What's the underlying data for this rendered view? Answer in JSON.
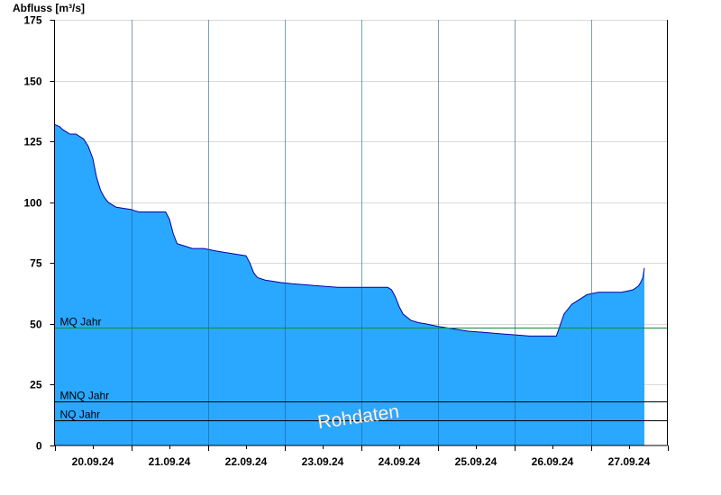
{
  "chart_data": {
    "type": "area",
    "ylabel": "Abfluss [m³/s]",
    "ylim": [
      0,
      175
    ],
    "yticks": [
      0,
      25,
      50,
      75,
      100,
      125,
      150,
      175
    ],
    "ytick_labels": [
      "0",
      "25",
      "50",
      "75",
      "100",
      "125",
      "150",
      "175"
    ],
    "x_day_labels": [
      "20.09.24",
      "21.09.24",
      "22.09.24",
      "23.09.24",
      "24.09.24",
      "25.09.24",
      "26.09.24",
      "27.09.24"
    ],
    "x_days_span": 8,
    "grid": true,
    "colors": {
      "fill": "#2aa8ff",
      "line": "#0000aa",
      "mq": "#138a3c",
      "ref": "#000000",
      "grid": "#d9d9d9"
    },
    "reference_lines": [
      {
        "label": "MQ Jahr",
        "value": 48.5
      },
      {
        "label": "MNQ Jahr",
        "value": 18
      },
      {
        "label": "NQ Jahr",
        "value": 10.5
      }
    ],
    "watermark": "Rohdaten",
    "series": [
      {
        "x_days": [
          0,
          0.07,
          0.1,
          0.15,
          0.2,
          0.28,
          0.38,
          0.44,
          0.5,
          0.55,
          0.6,
          0.65,
          0.7,
          0.75,
          0.8,
          0.9,
          1.0,
          1.05,
          1.1,
          1.25,
          1.35,
          1.45,
          1.5,
          1.55,
          1.6,
          1.7,
          1.8,
          1.95,
          2.1,
          2.3,
          2.5,
          2.55,
          2.6,
          2.65,
          2.75,
          2.95,
          3.1,
          3.3,
          3.5,
          3.7,
          3.9,
          4.05,
          4.2,
          4.35,
          4.4,
          4.45,
          4.5,
          4.55,
          4.65,
          4.75,
          4.85,
          5.0,
          5.2,
          5.4,
          5.6,
          5.8,
          6.0,
          6.2,
          6.35,
          6.55,
          6.65,
          6.75,
          6.85,
          6.95,
          7.1,
          7.3,
          7.4,
          7.48,
          7.55,
          7.62,
          7.65,
          7.68,
          7.7
        ],
        "values": [
          132,
          131,
          130,
          129,
          128,
          128,
          126,
          123,
          118,
          110,
          105,
          102,
          100,
          99,
          98,
          97.5,
          97,
          96.5,
          96,
          96,
          96,
          96,
          93,
          87,
          83,
          82,
          81,
          81,
          80,
          79,
          78,
          75,
          71,
          69,
          68,
          67,
          66.5,
          66,
          65.5,
          65,
          65,
          65,
          65,
          65,
          64,
          61,
          57,
          54,
          51.5,
          50.5,
          50,
          49,
          48,
          47,
          46.5,
          46,
          45.5,
          45,
          45,
          45,
          54,
          58,
          60,
          62,
          63,
          63,
          63,
          63.5,
          64,
          65.5,
          67,
          69,
          73
        ]
      }
    ]
  }
}
